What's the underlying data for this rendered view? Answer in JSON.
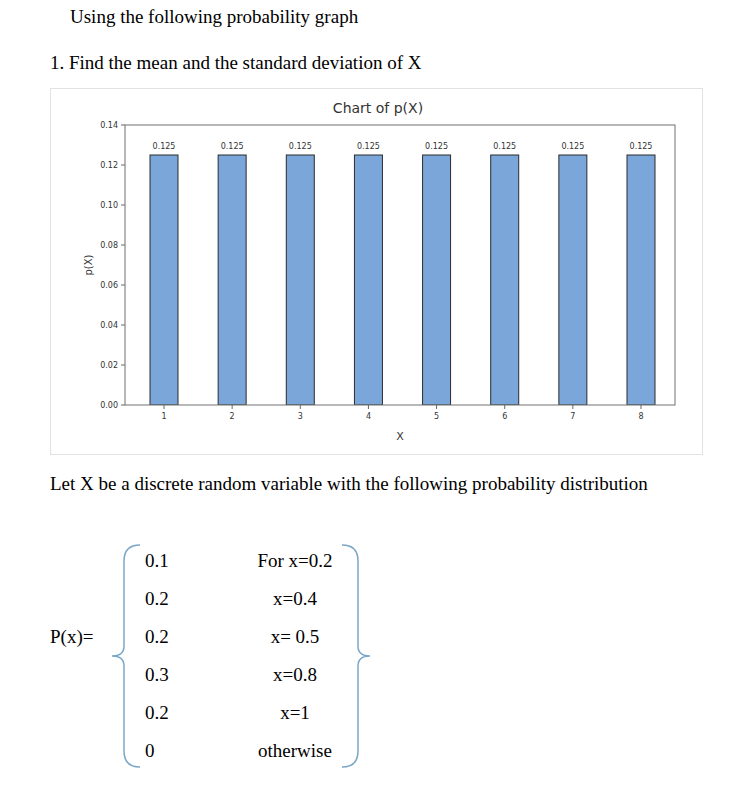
{
  "header": {
    "title": "Using the following probability graph"
  },
  "question": "1. Find the mean and the standard deviation of X",
  "chart_data": {
    "type": "bar",
    "title": "Chart of p(X)",
    "x_label": "X",
    "y_label": "p(X)",
    "categories": [
      "1",
      "2",
      "3",
      "4",
      "5",
      "6",
      "7",
      "8"
    ],
    "values": [
      0.125,
      0.125,
      0.125,
      0.125,
      0.125,
      0.125,
      0.125,
      0.125
    ],
    "color": "#7ba6da",
    "data_labels": true,
    "grid": false,
    "ylim": [
      0,
      0.14
    ],
    "yticks": [
      {
        "value": 0,
        "label": "0.00"
      },
      0.02,
      0.04,
      0.06,
      0.08,
      {
        "value": 0.1,
        "label": "0.10"
      },
      0.12,
      0.14
    ]
  },
  "paragraph": "Let X be a discrete random variable with the following probability distribution",
  "distribution": {
    "label": "P(x)=",
    "rows": [
      {
        "probability": "0.1",
        "condition": "For x=0.2"
      },
      {
        "probability": "0.2",
        "condition": "x=0.4"
      },
      {
        "probability": "0.2",
        "condition": "x= 0.5"
      },
      {
        "probability": "0.3",
        "condition": "x=0.8"
      },
      {
        "probability": "0.2",
        "condition": "x=1"
      },
      {
        "probability": "0",
        "condition": "otherwise"
      }
    ]
  }
}
